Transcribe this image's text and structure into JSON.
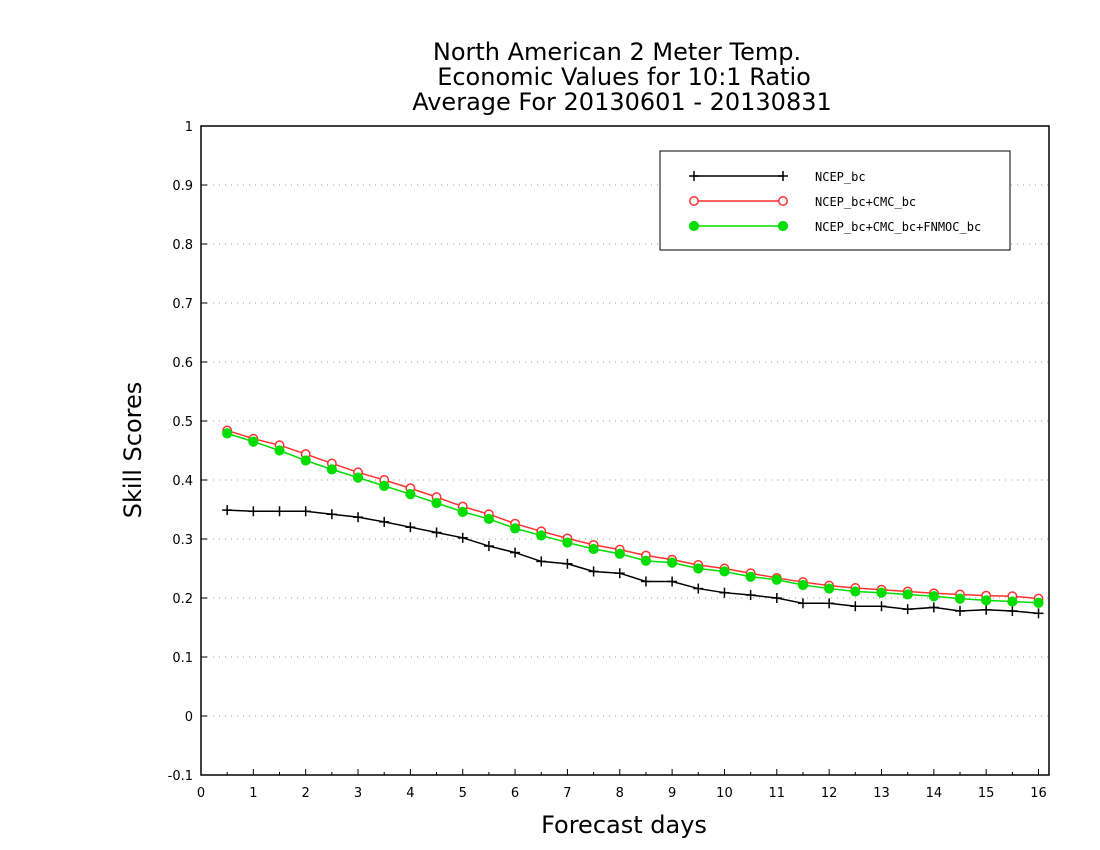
{
  "chart_data": {
    "type": "line",
    "title": [
      "North American 2 Meter Temp.",
      "Economic Values for 10:1 Ratio",
      "Average For 20130601 - 20130831"
    ],
    "xlabel": "Forecast days",
    "ylabel": "Skill Scores",
    "xlim": [
      0,
      16.2
    ],
    "ylim": [
      -0.1,
      1
    ],
    "xticks": [
      0,
      1,
      2,
      3,
      4,
      5,
      6,
      7,
      8,
      9,
      10,
      11,
      12,
      13,
      14,
      15,
      16
    ],
    "xtick_labels": [
      "0",
      "1",
      "2",
      "3",
      "4",
      "5",
      "6",
      "7",
      "8",
      "9",
      "10",
      "11",
      "12",
      "13",
      "14",
      "15",
      "16"
    ],
    "yticks": [
      -0.1,
      0,
      0.1,
      0.2,
      0.3,
      0.4,
      0.5,
      0.6,
      0.7,
      0.8,
      0.9,
      1
    ],
    "ytick_labels": [
      "-0.1",
      "0",
      "0.1",
      "0.2",
      "0.3",
      "0.4",
      "0.5",
      "0.6",
      "0.7",
      "0.8",
      "0.9",
      "1"
    ],
    "grid": "horizontal dotted",
    "legend_position": "top-right",
    "x": [
      0.5,
      1,
      1.5,
      2,
      2.5,
      3,
      3.5,
      4,
      4.5,
      5,
      5.5,
      6,
      6.5,
      7,
      7.5,
      8,
      8.5,
      9,
      9.5,
      10,
      10.5,
      11,
      11.5,
      12,
      12.5,
      13,
      13.5,
      14,
      14.5,
      15,
      15.5,
      16
    ],
    "series": [
      {
        "name": "NCEP_bc",
        "color": "#000000",
        "marker": "plus",
        "values": [
          0.349,
          0.347,
          0.347,
          0.347,
          0.342,
          0.337,
          0.329,
          0.32,
          0.311,
          0.302,
          0.288,
          0.277,
          0.262,
          0.258,
          0.245,
          0.242,
          0.228,
          0.228,
          0.216,
          0.209,
          0.205,
          0.2,
          0.191,
          0.191,
          0.186,
          0.186,
          0.181,
          0.184,
          0.178,
          0.18,
          0.178,
          0.174
        ]
      },
      {
        "name": "NCEP_bc+CMC_bc",
        "color": "#ff3030",
        "marker": "open-circle",
        "values": [
          0.484,
          0.47,
          0.459,
          0.444,
          0.428,
          0.413,
          0.4,
          0.386,
          0.371,
          0.355,
          0.342,
          0.326,
          0.313,
          0.301,
          0.29,
          0.282,
          0.272,
          0.265,
          0.256,
          0.25,
          0.242,
          0.234,
          0.227,
          0.221,
          0.217,
          0.214,
          0.211,
          0.208,
          0.206,
          0.204,
          0.203,
          0.199
        ]
      },
      {
        "name": "NCEP_bc+CMC_bc+FNMOC_bc",
        "color": "#00dd00",
        "marker": "filled-circle",
        "values": [
          0.479,
          0.465,
          0.45,
          0.433,
          0.418,
          0.404,
          0.39,
          0.376,
          0.361,
          0.346,
          0.334,
          0.318,
          0.306,
          0.294,
          0.283,
          0.275,
          0.263,
          0.26,
          0.25,
          0.245,
          0.236,
          0.231,
          0.222,
          0.216,
          0.211,
          0.209,
          0.206,
          0.203,
          0.199,
          0.196,
          0.194,
          0.192
        ]
      }
    ]
  }
}
